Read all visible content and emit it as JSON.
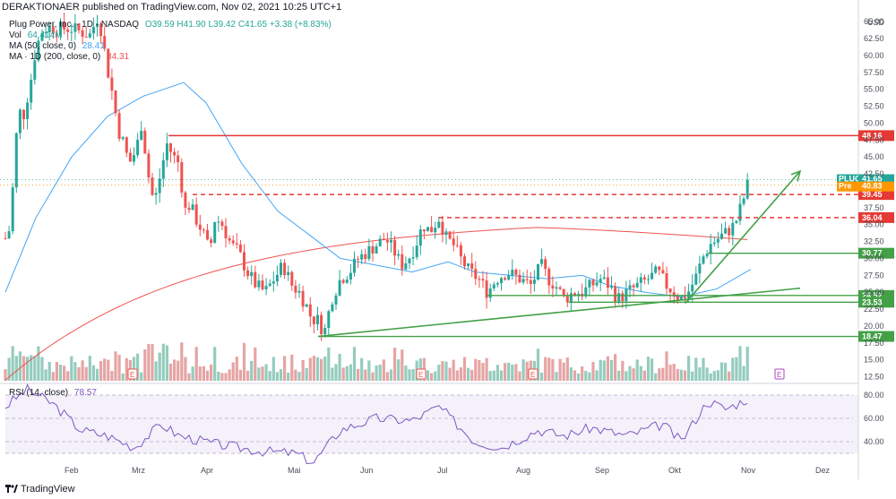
{
  "header": {
    "publish_line": "DERAKTIONAER published on TradingView.com, Nov 02, 2021 10:25 UTC+1"
  },
  "legend": {
    "title": "Plug Power, Inc. · 1D · NASDAQ",
    "ohlc": "O39.59 H41.90 L39.42 C41.65 +3.38 (+8.83%)",
    "vol_label": "Vol",
    "vol_value": "64.414M",
    "ma50_label": "MA (50, close, 0)",
    "ma50_value": "28.41",
    "ma200_label": "MA · 1D (200, close, 0)",
    "ma200_value": "34.31",
    "rsi_label": "RSI (14, close)",
    "rsi_value": "78.57"
  },
  "axis": {
    "currency": "USD",
    "price_ticks": [
      "65.00",
      "62.50",
      "60.00",
      "57.50",
      "55.00",
      "52.50",
      "50.00",
      "47.50",
      "45.00",
      "42.50",
      "37.50",
      "35.00",
      "32.50",
      "30.00",
      "27.50",
      "25.00",
      "22.50",
      "20.00",
      "17.50",
      "15.00",
      "12.50"
    ],
    "rsi_ticks": [
      "80.00",
      "60.00",
      "40.00"
    ],
    "months": [
      "Feb",
      "Mrz",
      "Apr",
      "Mai",
      "Jun",
      "Jul",
      "Aug",
      "Sep",
      "Okt",
      "Nov",
      "Dez"
    ]
  },
  "level_tags": [
    {
      "label": "48.16",
      "color": "#e53935"
    },
    {
      "label": "39.45",
      "color": "#e53935"
    },
    {
      "label": "36.04",
      "color": "#e53935"
    },
    {
      "label": "30.77",
      "color": "#43a047"
    },
    {
      "label": "24.52",
      "color": "#43a047"
    },
    {
      "label": "23.53",
      "color": "#43a047"
    },
    {
      "label": "18.47",
      "color": "#43a047"
    }
  ],
  "price_tags": [
    {
      "symbol": "PLUG",
      "value": "41.65",
      "color": "#26a69a"
    },
    {
      "symbol": "Pre",
      "value": "40.83",
      "color": "#ff9800"
    }
  ],
  "event_marker": "E",
  "footer": {
    "brand": "TradingView"
  }
}
